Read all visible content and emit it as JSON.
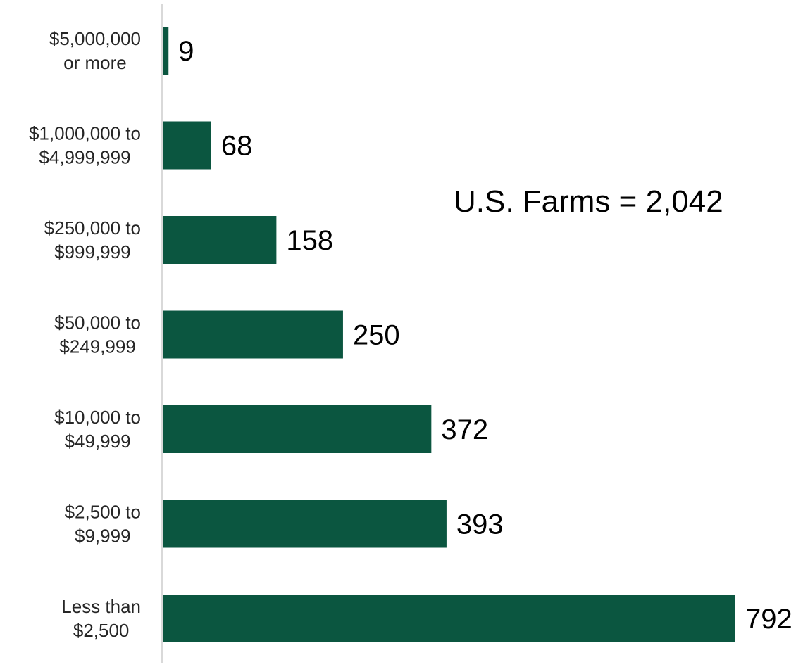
{
  "chart_data": {
    "type": "bar",
    "orientation": "horizontal",
    "categories": [
      [
        "$5,000,000",
        "or more"
      ],
      [
        "$1,000,000 to",
        "$4,999,999"
      ],
      [
        "$250,000 to",
        "$999,999"
      ],
      [
        "$50,000 to",
        "$249,999"
      ],
      [
        "$10,000 to",
        "$49,999"
      ],
      [
        "$2,500 to",
        "$9,999"
      ],
      [
        "Less than",
        "$2,500"
      ]
    ],
    "values": [
      9,
      68,
      158,
      250,
      372,
      393,
      792
    ],
    "value_labels": [
      "9",
      "68",
      "158",
      "250",
      "372",
      "393",
      "792"
    ],
    "annotation": "U.S. Farms = 2,042",
    "bar_color": "#0b5640",
    "axis_color": "#d9d9d9",
    "xlim": [
      0,
      792
    ],
    "grid": false,
    "legend": "none",
    "title": "",
    "xlabel": "",
    "ylabel": ""
  }
}
